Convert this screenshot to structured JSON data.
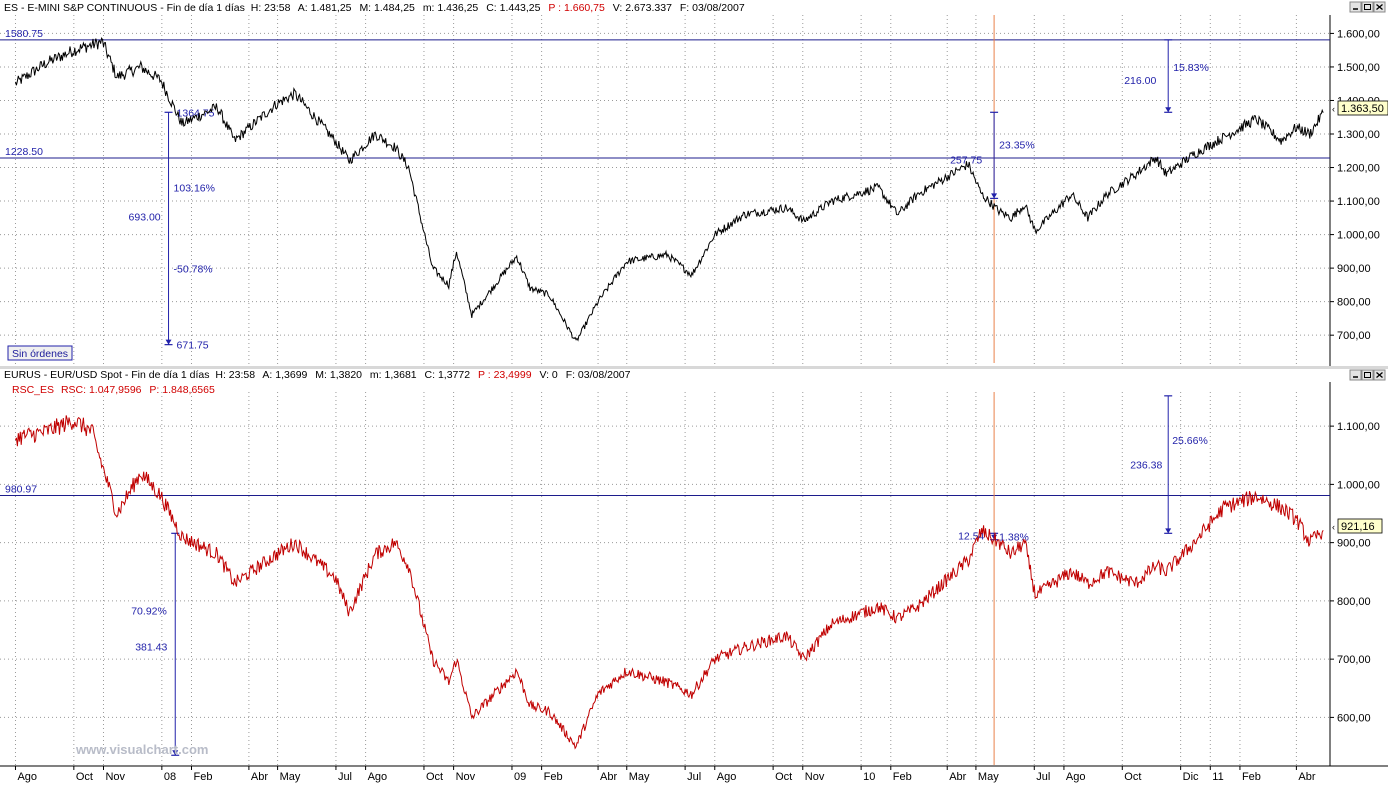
{
  "top_panel": {
    "header": {
      "symbol": "ES",
      "name": "E-MINI S&P CONTINUOUS",
      "period": "Fin de día 1 días",
      "H": "H: 23:58",
      "A": "A: 1.481,25",
      "M": "M: 1.484,25",
      "m": "m: 1.436,25",
      "C": "C: 1.443,25",
      "P": "P : 1.660,75",
      "V": "V: 2.673.337",
      "F": "F: 03/08/2007"
    },
    "badge": "Sin órdenes",
    "last_value": "1.363,50",
    "hlines": [
      {
        "value": 1580.75,
        "label": "1580.75"
      },
      {
        "value": 1228.5,
        "label": "1228.50"
      }
    ],
    "annotations": [
      {
        "kind": "measure",
        "x": "2008-01-08",
        "from": 1364.75,
        "to": 671.75,
        "labels": [
          "1364.75",
          "103.16%",
          "693.00",
          "-50.78%",
          "671.75"
        ]
      },
      {
        "kind": "measure",
        "x": "2010-05-20",
        "from": 1364.75,
        "to": 1108.0,
        "labels": [
          "257.75",
          "23.35%"
        ]
      },
      {
        "kind": "measure",
        "x": "2010-11-18",
        "from": 1580.75,
        "to": 1364.75,
        "labels": [
          "216.00",
          "15.83%"
        ]
      }
    ],
    "vline_date": "2010-05-20",
    "colors": {
      "line": "#000000",
      "hline": "#1c1c8c",
      "annotation": "#2222aa",
      "vline": "#e8804a"
    }
  },
  "bottom_panel": {
    "header": {
      "symbol": "EURUS",
      "name": "EUR/USD Spot",
      "period": "Fin de día 1 días",
      "H": "H: 23:58",
      "A": "A: 1,3699",
      "M": "M: 1,3820",
      "m": "m: 1,3681",
      "C": "C: 1,3772",
      "P": "P : 23,4999",
      "V": "V: 0",
      "F": "F: 03/08/2007"
    },
    "indicator": {
      "label": "RSC_ES",
      "rsc": "RSC: 1.047,9596",
      "p": "P: 1.848,6565"
    },
    "last_value": "921,16",
    "hlines": [
      {
        "value": 980.97,
        "label": "980.97"
      }
    ],
    "annotations": [
      {
        "kind": "measure",
        "x": "2008-01-15",
        "from": 916.0,
        "to": 535.0,
        "labels": [
          "70.92%",
          "381.43"
        ]
      },
      {
        "kind": "measure",
        "x": "2010-05-20",
        "from": 916.0,
        "to": 905.0,
        "labels": [
          "12.54",
          "1.38%"
        ]
      },
      {
        "kind": "measure",
        "x": "2010-11-18",
        "from": 1152.0,
        "to": 916.0,
        "labels": [
          "236.38",
          "25.66%"
        ]
      }
    ],
    "vline_date": "2010-05-20",
    "colors": {
      "line": "#c00000",
      "hline": "#1c1c8c",
      "annotation": "#2222aa",
      "vline": "#e8804a"
    }
  },
  "watermark": "www.visualchart.com",
  "chart_data": [
    {
      "type": "line",
      "title": "ES - E-MINI S&P CONTINUOUS",
      "xlabel": "",
      "ylabel": "",
      "ylim": [
        620,
        1640
      ],
      "yticks": [
        700,
        800,
        900,
        1000,
        1100,
        1200,
        1300,
        1400,
        1500,
        1600
      ],
      "ytick_labels": [
        "700,00",
        "800,00",
        "900,00",
        "1.000,00",
        "1.100,00",
        "1.200,00",
        "1.300,00",
        "1.400,00",
        "1.500,00",
        "1.600,00"
      ],
      "grid": true,
      "series": [
        {
          "x": [
            "2007-08-01",
            "2007-09-01",
            "2007-10-01",
            "2007-10-31",
            "2007-11-15",
            "2007-12-10",
            "2007-12-31",
            "2008-01-22",
            "2008-02-28",
            "2008-03-17",
            "2008-04-30",
            "2008-05-19",
            "2008-06-30",
            "2008-07-15",
            "2008-08-11",
            "2008-09-01",
            "2008-09-15",
            "2008-10-10",
            "2008-10-27",
            "2008-11-04",
            "2008-11-20",
            "2009-01-06",
            "2009-01-20",
            "2009-02-09",
            "2009-03-09",
            "2009-04-01",
            "2009-05-01",
            "2009-06-12",
            "2009-07-08",
            "2009-08-01",
            "2009-09-01",
            "2009-10-15",
            "2009-11-02",
            "2009-12-01",
            "2010-01-19",
            "2010-02-08",
            "2010-03-01",
            "2010-04-23",
            "2010-05-07",
            "2010-05-25",
            "2010-06-07",
            "2010-06-21",
            "2010-07-02",
            "2010-08-09",
            "2010-08-26",
            "2010-09-15",
            "2010-10-15",
            "2010-11-05",
            "2010-11-16",
            "2010-12-15",
            "2011-01-15",
            "2011-02-18",
            "2011-03-16",
            "2011-04-01",
            "2011-04-15",
            "2011-04-29"
          ],
          "values": [
            1450,
            1510,
            1550,
            1575,
            1470,
            1500,
            1460,
            1330,
            1380,
            1280,
            1390,
            1420,
            1280,
            1220,
            1300,
            1260,
            1200,
            900,
            850,
            950,
            760,
            935,
            840,
            820,
            680,
            800,
            920,
            940,
            880,
            1000,
            1060,
            1080,
            1040,
            1100,
            1140,
            1060,
            1120,
            1210,
            1120,
            1070,
            1050,
            1090,
            1010,
            1120,
            1050,
            1120,
            1180,
            1230,
            1180,
            1240,
            1290,
            1345,
            1280,
            1320,
            1300,
            1363.5
          ]
        }
      ]
    },
    {
      "type": "line",
      "title": "EURUS - EUR/USD Spot / RSC_ES",
      "xlabel": "",
      "ylabel": "",
      "ylim": [
        520,
        1150
      ],
      "yticks": [
        600,
        700,
        800,
        900,
        1000,
        1100
      ],
      "ytick_labels": [
        "600,00",
        "700,00",
        "800,00",
        "900,00",
        "1.000,00",
        "1.100,00"
      ],
      "xtick_labels": [
        "Ago",
        "Oct",
        "Nov",
        "08",
        "Feb",
        "Abr",
        "May",
        "Jul",
        "Ago",
        "Oct",
        "Nov",
        "09",
        "Feb",
        "Abr",
        "May",
        "Jul",
        "Ago",
        "Oct",
        "Nov",
        "10",
        "Feb",
        "Abr",
        "May",
        "Jul",
        "Ago",
        "Oct",
        "Dic",
        "11",
        "Feb",
        "Abr"
      ],
      "xtick_dates": [
        "2007-08-01",
        "2007-10-01",
        "2007-11-01",
        "2008-01-01",
        "2008-02-01",
        "2008-04-01",
        "2008-05-01",
        "2008-07-01",
        "2008-08-01",
        "2008-10-01",
        "2008-11-01",
        "2009-01-01",
        "2009-02-01",
        "2009-04-01",
        "2009-05-01",
        "2009-07-01",
        "2009-08-01",
        "2009-10-01",
        "2009-11-01",
        "2010-01-01",
        "2010-02-01",
        "2010-04-01",
        "2010-05-01",
        "2010-07-01",
        "2010-08-01",
        "2010-10-01",
        "2010-12-01",
        "2011-01-01",
        "2011-02-01",
        "2011-04-01"
      ],
      "grid": true,
      "series": [
        {
          "x": [
            "2007-08-01",
            "2007-09-01",
            "2007-10-01",
            "2007-10-20",
            "2007-11-15",
            "2007-12-10",
            "2007-12-31",
            "2008-01-22",
            "2008-02-28",
            "2008-03-17",
            "2008-04-30",
            "2008-05-19",
            "2008-06-30",
            "2008-07-15",
            "2008-08-11",
            "2008-09-01",
            "2008-09-15",
            "2008-10-10",
            "2008-10-27",
            "2008-11-04",
            "2008-11-20",
            "2009-01-06",
            "2009-01-20",
            "2009-02-09",
            "2009-03-09",
            "2009-04-01",
            "2009-05-01",
            "2009-06-12",
            "2009-07-08",
            "2009-08-01",
            "2009-09-01",
            "2009-10-15",
            "2009-11-02",
            "2009-12-01",
            "2010-01-19",
            "2010-02-08",
            "2010-03-01",
            "2010-04-23",
            "2010-05-07",
            "2010-05-25",
            "2010-06-07",
            "2010-06-21",
            "2010-07-02",
            "2010-08-09",
            "2010-08-26",
            "2010-09-15",
            "2010-10-15",
            "2010-11-05",
            "2010-11-16",
            "2010-12-15",
            "2011-01-15",
            "2011-02-18",
            "2011-03-16",
            "2011-04-01",
            "2011-04-15",
            "2011-04-29"
          ],
          "values": [
            1080,
            1090,
            1110,
            1090,
            950,
            1020,
            980,
            910,
            880,
            830,
            880,
            900,
            840,
            780,
            880,
            900,
            860,
            700,
            660,
            700,
            600,
            680,
            620,
            610,
            550,
            640,
            680,
            660,
            640,
            700,
            720,
            740,
            700,
            760,
            790,
            770,
            790,
            870,
            920,
            900,
            880,
            900,
            810,
            850,
            830,
            850,
            830,
            860,
            850,
            900,
            960,
            980,
            960,
            940,
            900,
            921.16
          ]
        }
      ]
    }
  ]
}
